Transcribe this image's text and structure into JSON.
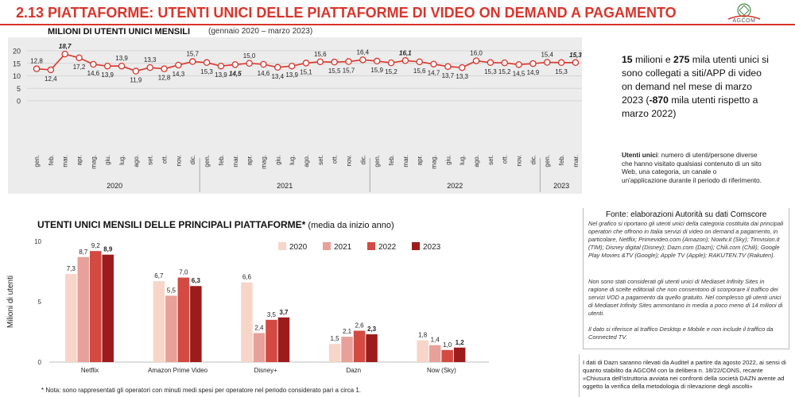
{
  "header": {
    "title": "2.13 PIATTAFORME: UTENTI UNICI DELLE PIATTAFORME DI VIDEO ON DEMAND A PAGAMENTO",
    "logo_text": "AGCOM",
    "accent_color": "#d9352b"
  },
  "top_chart": {
    "title": "MILIONI DI UTENTI UNICI MENSILI",
    "subtitle": "(gennaio 2020 – marzo 2023)"
  },
  "summary": {
    "part1": "15",
    "part2": " milioni e ",
    "part3": "275",
    "part4": " mila utenti unici si sono collegati a siti/APP di video on demand nel mese di marzo 2023 (",
    "part5": "-870",
    "part6": " mila utenti rispetto a marzo 2022)"
  },
  "definition": {
    "term": "Utenti unici",
    "text": ": numero di utenti/persone diverse che hanno visitato qualsiasi contenuto di un sito Web, una categoria, un canale o un'applicazione durante il periodo di riferimento."
  },
  "bottom_chart": {
    "title": "UTENTI UNICI MENSILI DELLE PRINCIPALI PIATTAFORME*",
    "subtitle": " (media da inizio anno)"
  },
  "source": {
    "heading": "Fonte: elaborazioni Autorità su dati Comscore",
    "p1": "Nel grafico si riportano gli utenti unici della categoria costituita dai principali operatori che offrono in Italia servizi di video on demand a pagamento, in particolare, Netflix; Primevideo.com (Amazon); Nowtv.it (Sky); Timvision.it (TIM); Disney digital (Disney); Dazn.com (Dazn); Chili.com (Chili); Google Play Movies &TV (Google); Apple TV (Apple); RAKUTEN.TV (Rakuten).",
    "p2": "Non sono stati considerati gli utenti unici di Mediaset Infinity Sites in ragione di scelte editoriali che non consentono di scorporare il traffico dei servizi VOD a pagamento da quello gratuito. Nel complesso gli utenti unici di Mediaset Infinity Sites ammontano in media a poco meno di 14 milioni di utenti.",
    "p3": "Il dato si riferisce al traffico Desktop e Mobile e non include il traffico da Connected TV."
  },
  "dazn_note": "I dati di Dazn saranno rilevati da Auditel a partire da agosto 2022, ai sensi di quanto stabilito da AGCOM con la delibera n. 18/22/CONS, recante «Chiusura dell'istruttoria avviata nei confronti della società DAZN avente ad oggetto la verifica della metodologia di rilevazione degli ascolti»",
  "footnote": "* Nota: sono rappresentati gli operatori con minuti medi spesi per operatore nel periodo considerato pari a circa 1.",
  "chart_data": [
    {
      "type": "line",
      "title": "MILIONI DI UTENTI UNICI MENSILI",
      "subtitle": "(gennaio 2020 – marzo 2023)",
      "ylim": [
        0,
        20
      ],
      "yticks": [
        0,
        5,
        10,
        15,
        20
      ],
      "grid": true,
      "color": "#d9352b",
      "months": [
        "gen.",
        "feb.",
        "mar.",
        "apr.",
        "mag.",
        "giu.",
        "lug.",
        "ago.",
        "set.",
        "ott.",
        "nov.",
        "dic.",
        "gen.",
        "feb.",
        "mar.",
        "apr.",
        "mag.",
        "giu.",
        "lug.",
        "ago.",
        "set.",
        "ott.",
        "nov.",
        "dic.",
        "gen.",
        "feb.",
        "mar.",
        "apr.",
        "mag.",
        "giu.",
        "lug.",
        "ago.",
        "set.",
        "ott.",
        "nov.",
        "dic.",
        "gen.",
        "feb.",
        "mar."
      ],
      "years": [
        {
          "label": "2020",
          "count": 12
        },
        {
          "label": "2021",
          "count": 12
        },
        {
          "label": "2022",
          "count": 12
        },
        {
          "label": "2023",
          "count": 3
        }
      ],
      "values": [
        12.8,
        12.4,
        18.7,
        17.2,
        14.6,
        13.9,
        13.9,
        11.9,
        13.3,
        12.8,
        14.3,
        15.7,
        15.3,
        13.9,
        14.5,
        15.0,
        14.6,
        13.4,
        13.9,
        15.1,
        15.6,
        15.5,
        15.7,
        16.4,
        15.9,
        15.2,
        16.1,
        15.6,
        14.7,
        13.7,
        13.3,
        16.0,
        15.3,
        15.2,
        14.5,
        14.9,
        15.4,
        15.3,
        15.3
      ],
      "labels": [
        "12,8",
        "12,4",
        "18,7",
        "17,2",
        "14,6",
        "13,9",
        "13,9",
        "11,9",
        "13,3",
        "12,8",
        "14,3",
        "15,7",
        "15,3",
        "13,9",
        "14,5",
        "15,0",
        "14,6",
        "13,4",
        "13,9",
        "15,1",
        "15,6",
        "15,5",
        "15,7",
        "16,4",
        "15,9",
        "15,2",
        "16,1",
        "15,6",
        "14,7",
        "13,7",
        "13,3",
        "16,0",
        "15,3",
        "15,2",
        "14,5",
        "14,9",
        "15,4",
        "15,3",
        "15,3"
      ],
      "bold_labels": [
        2,
        14,
        26,
        38
      ]
    },
    {
      "type": "bar",
      "title": "UTENTI UNICI MENSILI DELLE PRINCIPALI PIATTAFORME*",
      "ylabel": "Milioni di utenti",
      "ylim": [
        0,
        10
      ],
      "yticks": [
        0,
        5,
        10
      ],
      "legend_position": "top-right",
      "categories": [
        "Netflix",
        "Amazon Prime Video",
        "Disney+",
        "Dazn",
        "Now (Sky)"
      ],
      "series": [
        {
          "name": "2020",
          "color": "#f7d5c8",
          "values": [
            7.3,
            6.7,
            6.6,
            1.5,
            1.8
          ],
          "labels": [
            "7,3",
            "6,7",
            "6,6",
            "1,5",
            "1,8"
          ]
        },
        {
          "name": "2021",
          "color": "#e8a09a",
          "values": [
            8.7,
            5.5,
            2.4,
            2.1,
            1.4
          ],
          "labels": [
            "8,7",
            "5,5",
            "2,4",
            "2,1",
            "1,4"
          ]
        },
        {
          "name": "2022",
          "color": "#d34a42",
          "values": [
            9.2,
            7.0,
            3.5,
            2.6,
            1.0
          ],
          "labels": [
            "9,2",
            "7,0",
            "3,5",
            "2,6",
            "1,0"
          ]
        },
        {
          "name": "2023",
          "color": "#9e1b1b",
          "values": [
            8.9,
            6.3,
            3.7,
            2.3,
            1.2
          ],
          "labels": [
            "8,9",
            "6,3",
            "3,7",
            "2,3",
            "1,2"
          ]
        }
      ]
    }
  ]
}
